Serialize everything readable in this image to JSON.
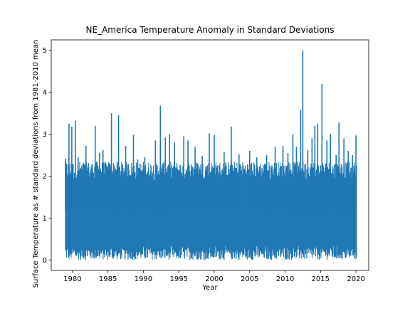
{
  "colors": {
    "series": "#1f77b4",
    "axis": "#000000",
    "background": "#ffffff"
  },
  "chart_data": {
    "type": "line",
    "title": "NE_America Temperature Anomaly in Standard Deviations",
    "xlabel": "Year",
    "ylabel": "Surface Temperature as # standard deviations from 1981-2010 mean",
    "xlim": [
      1977.0,
      2021.8
    ],
    "ylim": [
      -0.25,
      5.25
    ],
    "xticks": [
      1980,
      1985,
      1990,
      1995,
      2000,
      2005,
      2010,
      2015,
      2020
    ],
    "yticks": [
      0,
      1,
      2,
      3,
      4,
      5
    ],
    "x_range": [
      1979.0,
      2020.1
    ],
    "typical_daily_range": [
      0.0,
      2.0
    ],
    "grid": false,
    "legend": "none",
    "peaks": [
      {
        "x": 1979.0,
        "y": 2.42
      },
      {
        "x": 1979.5,
        "y": 3.25
      },
      {
        "x": 1979.9,
        "y": 3.18
      },
      {
        "x": 1980.4,
        "y": 3.32
      },
      {
        "x": 1980.8,
        "y": 2.45
      },
      {
        "x": 1981.9,
        "y": 2.72
      },
      {
        "x": 1983.2,
        "y": 3.2
      },
      {
        "x": 1983.8,
        "y": 2.55
      },
      {
        "x": 1984.3,
        "y": 2.62
      },
      {
        "x": 1985.5,
        "y": 3.5
      },
      {
        "x": 1986.5,
        "y": 3.45
      },
      {
        "x": 1987.5,
        "y": 2.72
      },
      {
        "x": 1988.6,
        "y": 2.98
      },
      {
        "x": 1989.2,
        "y": 2.4
      },
      {
        "x": 1990.2,
        "y": 2.45
      },
      {
        "x": 1991.7,
        "y": 2.85
      },
      {
        "x": 1992.4,
        "y": 3.68
      },
      {
        "x": 1993.1,
        "y": 2.92
      },
      {
        "x": 1993.7,
        "y": 3.0
      },
      {
        "x": 1994.4,
        "y": 2.8
      },
      {
        "x": 1995.7,
        "y": 2.95
      },
      {
        "x": 1996.3,
        "y": 2.85
      },
      {
        "x": 1997.3,
        "y": 2.7
      },
      {
        "x": 1998.3,
        "y": 2.48
      },
      {
        "x": 1999.3,
        "y": 3.02
      },
      {
        "x": 2000.0,
        "y": 2.98
      },
      {
        "x": 2001.4,
        "y": 2.58
      },
      {
        "x": 2002.4,
        "y": 3.18
      },
      {
        "x": 2003.5,
        "y": 2.52
      },
      {
        "x": 2005.0,
        "y": 2.6
      },
      {
        "x": 2006.0,
        "y": 2.45
      },
      {
        "x": 2007.4,
        "y": 2.5
      },
      {
        "x": 2008.6,
        "y": 2.7
      },
      {
        "x": 2009.7,
        "y": 2.72
      },
      {
        "x": 2010.4,
        "y": 2.55
      },
      {
        "x": 2011.1,
        "y": 3.0
      },
      {
        "x": 2011.6,
        "y": 2.7
      },
      {
        "x": 2012.2,
        "y": 3.58
      },
      {
        "x": 2012.5,
        "y": 5.0
      },
      {
        "x": 2013.2,
        "y": 2.62
      },
      {
        "x": 2013.8,
        "y": 2.9
      },
      {
        "x": 2014.2,
        "y": 3.2
      },
      {
        "x": 2014.6,
        "y": 3.25
      },
      {
        "x": 2015.2,
        "y": 4.2
      },
      {
        "x": 2015.9,
        "y": 2.85
      },
      {
        "x": 2016.4,
        "y": 3.0
      },
      {
        "x": 2017.2,
        "y": 2.5
      },
      {
        "x": 2017.6,
        "y": 3.28
      },
      {
        "x": 2018.3,
        "y": 2.9
      },
      {
        "x": 2018.9,
        "y": 2.6
      },
      {
        "x": 2019.5,
        "y": 2.5
      },
      {
        "x": 2020.0,
        "y": 2.97
      }
    ]
  }
}
